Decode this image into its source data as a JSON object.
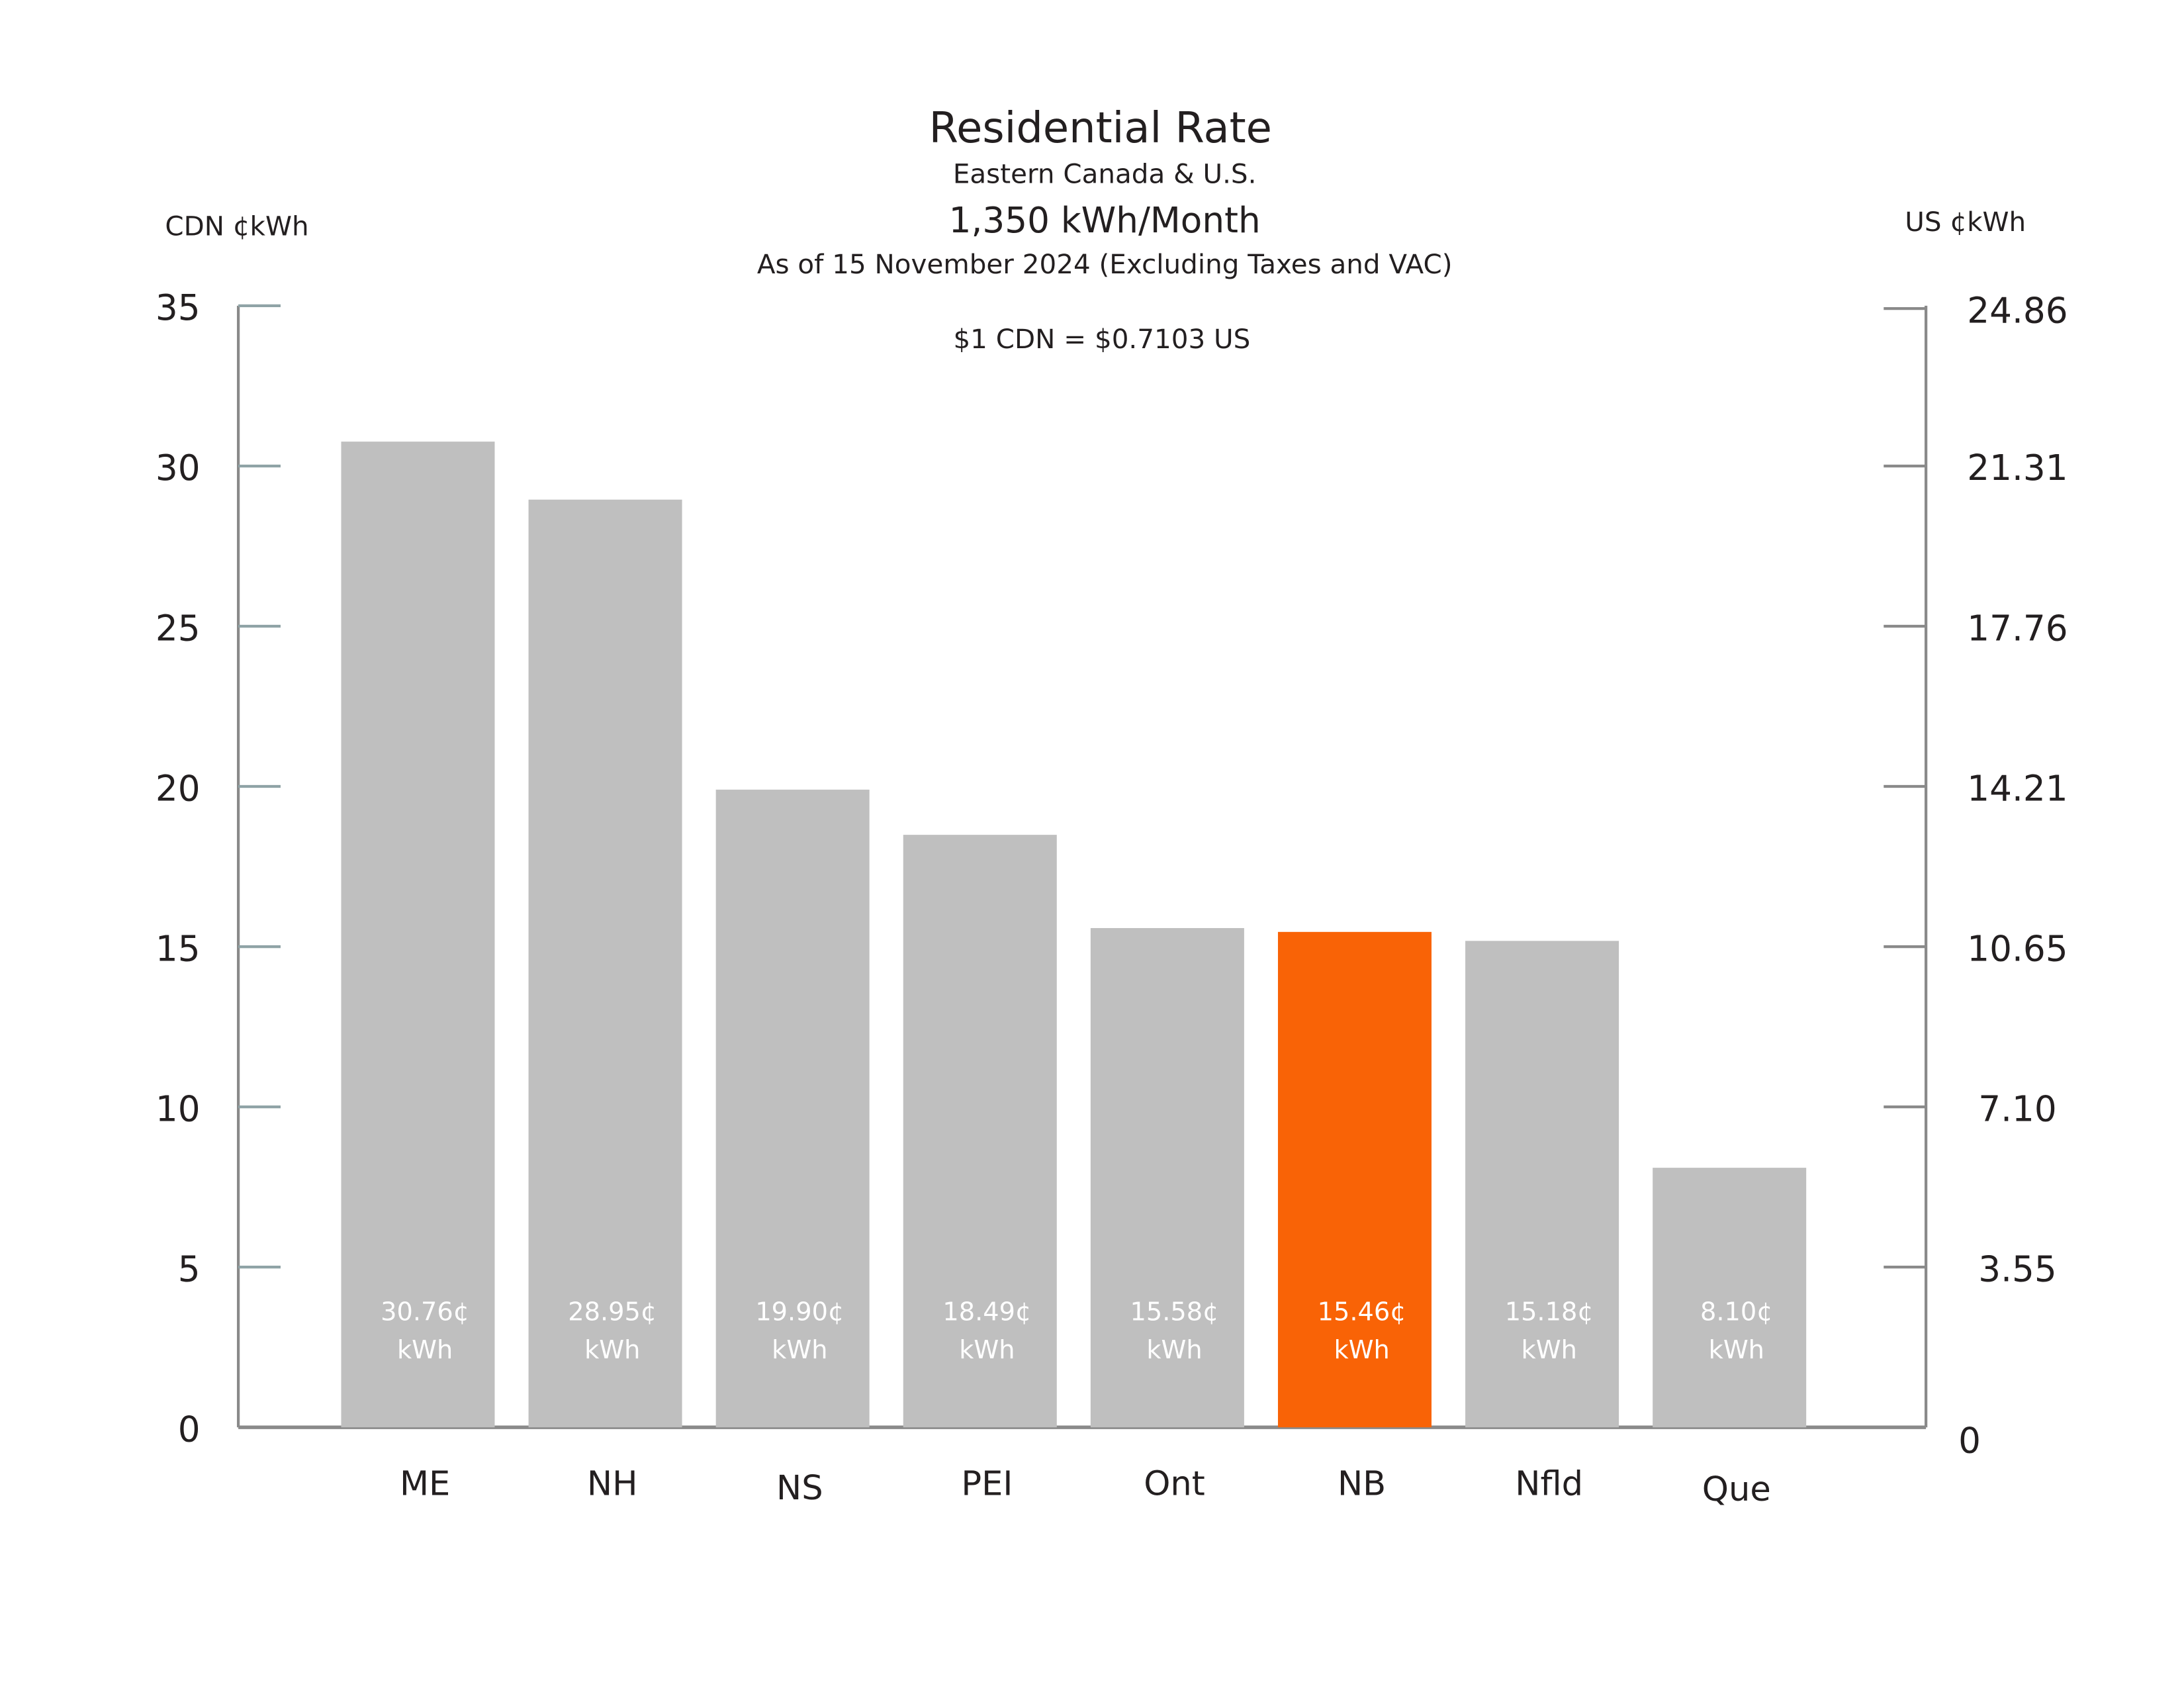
{
  "chart_data": {
    "type": "bar",
    "title": "Residential Rate",
    "subtitle": "Eastern Canada & U.S.",
    "subtitle2": "1,350 kWh/Month",
    "subtitle3": "As of 15 November 2024 (Excluding Taxes and VAC)",
    "annotation": "$1 CDN = $0.7103 US",
    "ylabel": "CDN ¢kWh",
    "ylabel_right": "US ¢kWh",
    "ylim": [
      0,
      35
    ],
    "yticks": [
      "0",
      "5",
      "10",
      "15",
      "20",
      "25",
      "30",
      "35"
    ],
    "yticks_right": [
      "0",
      "3.55",
      "7.10",
      "10.65",
      "14.21",
      "17.76",
      "21.31",
      "24.86"
    ],
    "categories": [
      "ME",
      "NH",
      "NS",
      "PEI",
      "Ont",
      "NB",
      "Nfld",
      "Que"
    ],
    "values": [
      30.76,
      28.95,
      19.9,
      18.49,
      15.58,
      15.46,
      15.18,
      8.1
    ],
    "data_labels": [
      "30.76¢",
      "28.95¢",
      "19.90¢",
      "18.49¢",
      "15.58¢",
      "15.46¢",
      "15.18¢",
      "8.10¢"
    ],
    "data_label_unit": "kWh",
    "highlight": "NB",
    "colors": {
      "bar": "#bfbfbf",
      "highlight": "#f96306",
      "axis": "#8a8a8a",
      "tick": "#8fa3a6",
      "label": "#ffffff"
    },
    "grid": false,
    "legend": "none"
  }
}
